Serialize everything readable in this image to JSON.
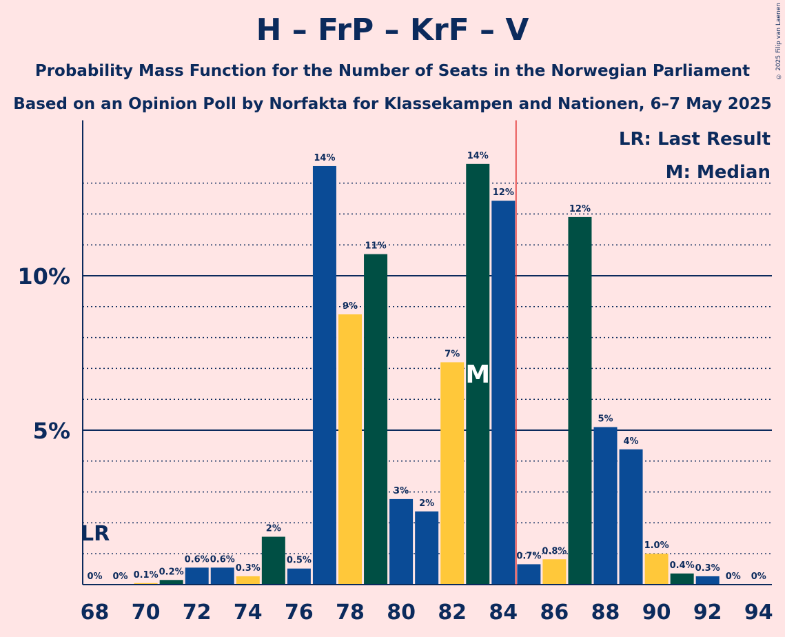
{
  "title": "H – FrP – KrF – V",
  "subtitle_1": "Probability Mass Function for the Number of Seats in the Norwegian Parliament",
  "subtitle_2": "Based on an Opinion Poll by Norfakta for Klassekampen and Nationen, 6–7 May 2025",
  "copyright": "© 2025 Filip van Laenen",
  "legend": {
    "lr": "LR: Last Result",
    "m": "M: Median"
  },
  "markers": {
    "lr_label": "LR",
    "median_label": "M"
  },
  "colors": {
    "background": "#ffe5e5",
    "text": "#0b2a5c",
    "blue": "#0a4b96",
    "yellow": "#ffc83a",
    "green": "#004f44",
    "majority_line": "#e02020"
  },
  "chart_data": {
    "type": "bar",
    "x": [
      68,
      69,
      70,
      71,
      72,
      73,
      74,
      75,
      76,
      77,
      78,
      79,
      80,
      81,
      82,
      83,
      84,
      85,
      86,
      87,
      88,
      89,
      90,
      91,
      92,
      93,
      94
    ],
    "values": [
      0,
      0,
      0.05,
      0.15,
      0.55,
      0.55,
      0.27,
      1.55,
      0.52,
      13.55,
      8.75,
      10.7,
      2.77,
      2.37,
      7.2,
      13.62,
      12.43,
      0.66,
      0.82,
      11.9,
      5.1,
      4.38,
      1.0,
      0.36,
      0.27,
      0,
      0
    ],
    "labels": [
      "0%",
      "0%",
      "0.1%",
      "0.2%",
      "0.6%",
      "0.6%",
      "0.3%",
      "2%",
      "0.5%",
      "14%",
      "9%",
      "11%",
      "3%",
      "2%",
      "7%",
      "14%",
      "12%",
      "0.7%",
      "0.8%",
      "12%",
      "5%",
      "4%",
      "1.0%",
      "0.4%",
      "0.3%",
      "0%",
      "0%"
    ],
    "bar_colors": [
      "blue",
      "green",
      "yellow",
      "green",
      "blue",
      "blue",
      "yellow",
      "green",
      "blue",
      "blue",
      "yellow",
      "green",
      "blue",
      "blue",
      "yellow",
      "green",
      "blue",
      "blue",
      "yellow",
      "green",
      "blue",
      "blue",
      "yellow",
      "green",
      "blue",
      "green",
      "blue"
    ],
    "x_ticks": [
      68,
      70,
      72,
      74,
      76,
      78,
      80,
      82,
      84,
      86,
      88,
      90,
      92,
      94
    ],
    "y_ticks": [
      {
        "value": 5,
        "label": "5%"
      },
      {
        "value": 10,
        "label": "10%"
      }
    ],
    "ylim": [
      0,
      14.9
    ],
    "last_result_seat": 68,
    "median_seat": 83,
    "majority_threshold": 84.5,
    "grid": "dotted every 1%, solid at 5% and 10%"
  }
}
